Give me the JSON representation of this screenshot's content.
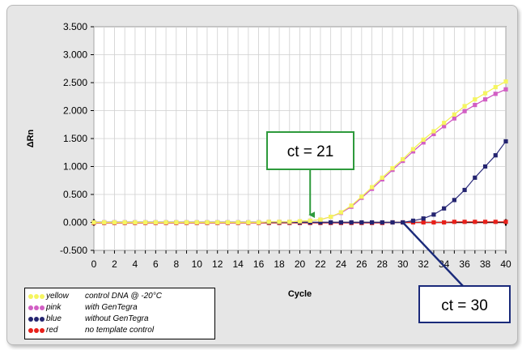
{
  "chart_data": {
    "type": "line",
    "xlabel": "Cycle",
    "ylabel": "ΔRn",
    "xlim": [
      0,
      40
    ],
    "ylim": [
      -0.5,
      3.5
    ],
    "x_ticks": [
      "0",
      "2",
      "4",
      "6",
      "8",
      "10",
      "12",
      "14",
      "16",
      "18",
      "20",
      "22",
      "24",
      "26",
      "28",
      "30",
      "32",
      "34",
      "36",
      "38",
      "40"
    ],
    "y_ticks": [
      "3.500",
      "3.000",
      "2.500",
      "2.000",
      "1.500",
      "1.000",
      "0.500",
      "0.000",
      "-0.500"
    ],
    "grid": true,
    "series": [
      {
        "name": "yellow",
        "color": "#f2f24c",
        "marker_color": "#f5f560",
        "x": [
          0,
          1,
          2,
          3,
          4,
          5,
          6,
          7,
          8,
          9,
          10,
          11,
          12,
          13,
          14,
          15,
          16,
          17,
          18,
          19,
          20,
          21,
          22,
          23,
          24,
          25,
          26,
          27,
          28,
          29,
          30,
          31,
          32,
          33,
          34,
          35,
          36,
          37,
          38,
          39,
          40
        ],
        "y": [
          0,
          0,
          0,
          0,
          0,
          0,
          0,
          0,
          0,
          0,
          0,
          0,
          0,
          0,
          0,
          0,
          0,
          0.01,
          0.01,
          0.01,
          0.02,
          0.03,
          0.05,
          0.1,
          0.18,
          0.3,
          0.46,
          0.63,
          0.8,
          0.97,
          1.13,
          1.31,
          1.48,
          1.63,
          1.78,
          1.93,
          2.08,
          2.2,
          2.31,
          2.42,
          2.52
        ]
      },
      {
        "name": "pink",
        "color": "#cc4fbf",
        "marker_color": "#d25fc4",
        "x": [
          0,
          1,
          2,
          3,
          4,
          5,
          6,
          7,
          8,
          9,
          10,
          11,
          12,
          13,
          14,
          15,
          16,
          17,
          18,
          19,
          20,
          21,
          22,
          23,
          24,
          25,
          26,
          27,
          28,
          29,
          30,
          31,
          32,
          33,
          34,
          35,
          36,
          37,
          38,
          39,
          40
        ],
        "y": [
          0,
          0,
          0,
          0,
          0,
          0,
          0,
          0,
          0,
          0,
          0,
          0,
          0,
          0,
          0,
          0,
          0,
          0.01,
          0.01,
          0.01,
          0.02,
          0.03,
          0.05,
          0.1,
          0.17,
          0.28,
          0.44,
          0.6,
          0.77,
          0.94,
          1.1,
          1.27,
          1.43,
          1.58,
          1.72,
          1.86,
          1.99,
          2.1,
          2.2,
          2.3,
          2.38
        ]
      },
      {
        "name": "blue",
        "color": "#2b2b7a",
        "marker_color": "#242470",
        "x": [
          0,
          1,
          2,
          3,
          4,
          5,
          6,
          7,
          8,
          9,
          10,
          11,
          12,
          13,
          14,
          15,
          16,
          17,
          18,
          19,
          20,
          21,
          22,
          23,
          24,
          25,
          26,
          27,
          28,
          29,
          30,
          31,
          32,
          33,
          34,
          35,
          36,
          37,
          38,
          39,
          40
        ],
        "y": [
          0,
          0,
          0,
          0,
          0,
          0,
          0,
          0,
          0,
          0,
          0,
          0,
          0,
          0,
          0,
          0,
          0,
          0,
          0,
          0,
          0,
          0,
          0,
          0,
          0,
          0,
          0,
          0,
          0,
          0,
          0,
          0.03,
          0.07,
          0.14,
          0.25,
          0.4,
          0.58,
          0.8,
          1.0,
          1.2,
          1.45
        ]
      },
      {
        "name": "red",
        "color": "#e8201a",
        "marker_color": "#e8201a",
        "x": [
          0,
          1,
          2,
          3,
          4,
          5,
          6,
          7,
          8,
          9,
          10,
          11,
          12,
          13,
          14,
          15,
          16,
          17,
          18,
          19,
          20,
          21,
          22,
          23,
          24,
          25,
          26,
          27,
          28,
          29,
          30,
          31,
          32,
          33,
          34,
          35,
          36,
          37,
          38,
          39,
          40
        ],
        "y": [
          -0.01,
          -0.01,
          -0.01,
          -0.01,
          -0.01,
          -0.01,
          -0.01,
          -0.01,
          -0.01,
          -0.01,
          -0.01,
          -0.01,
          -0.01,
          -0.01,
          -0.01,
          -0.01,
          -0.01,
          -0.01,
          -0.01,
          -0.01,
          -0.01,
          -0.01,
          -0.01,
          -0.01,
          -0.01,
          -0.01,
          -0.01,
          -0.01,
          -0.01,
          0,
          0,
          0,
          0,
          0,
          0,
          0.01,
          0.01,
          0.01,
          0.01,
          0.01,
          0.01
        ]
      }
    ],
    "annotations": [
      {
        "text": "ct = 21",
        "target_x": 21,
        "target_y": 0.02,
        "color": "#2e9a3c"
      },
      {
        "text": "ct = 30",
        "target_x": 30,
        "target_y": 0.0,
        "color": "#1a2a7a"
      }
    ]
  },
  "legend": {
    "items": [
      {
        "color_name": "yellow",
        "description": "control DNA @ -20°C",
        "dot_color": "#f5f560"
      },
      {
        "color_name": "pink",
        "description": "with GenTegra",
        "dot_color": "#d25fc4"
      },
      {
        "color_name": "blue",
        "description": "without GenTegra",
        "dot_color": "#242470"
      },
      {
        "color_name": "red",
        "description": "no template control",
        "dot_color": "#e8201a"
      }
    ]
  }
}
